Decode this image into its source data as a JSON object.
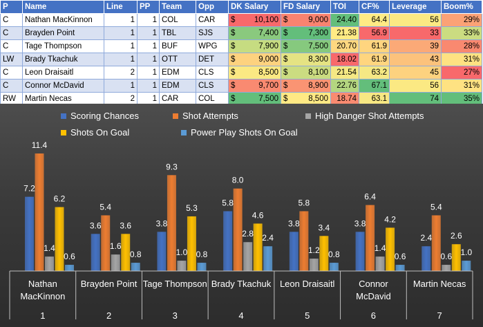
{
  "table": {
    "headers": [
      "P",
      "Name",
      "Line",
      "PP",
      "Team",
      "Opp",
      "DK Salary",
      "FD Salary",
      "TOI",
      "CF%",
      "Leverage",
      "Boom%"
    ],
    "rows": [
      {
        "pos": "C",
        "name": "Nathan MacKinnon",
        "line": "1",
        "pp": "1",
        "team": "COL",
        "opp": "CAR",
        "dk": "10,100",
        "fd": "9,000",
        "toi": "24.40",
        "cf": "64.4",
        "lev": "56",
        "boom": "29%",
        "colors": {
          "dk": "#f8696b",
          "fd": "#f98370",
          "toi": "#63be7b",
          "cf": "#ffeb84",
          "lev": "#fbe983",
          "boom": "#fba276"
        }
      },
      {
        "pos": "C",
        "name": "Brayden Point",
        "line": "1",
        "pp": "1",
        "team": "TBL",
        "opp": "SJS",
        "dk": "7,400",
        "fd": "7,300",
        "toi": "21.38",
        "cf": "56.9",
        "lev": "33",
        "boom": "33%",
        "colors": {
          "dk": "#8ac97e",
          "fd": "#63be7b",
          "toi": "#ffeb84",
          "cf": "#f8696b",
          "lev": "#f8696b",
          "boom": "#cbdc81"
        }
      },
      {
        "pos": "C",
        "name": "Tage Thompson",
        "line": "1",
        "pp": "1",
        "team": "BUF",
        "opp": "WPG",
        "dk": "7,900",
        "fd": "7,500",
        "toi": "20.70",
        "cf": "61.9",
        "lev": "39",
        "boom": "28%",
        "colors": {
          "dk": "#c6dc81",
          "fd": "#86c97e",
          "toi": "#fed880",
          "cf": "#ffd57f",
          "lev": "#fba977",
          "boom": "#f98970"
        }
      },
      {
        "pos": "LW",
        "name": "Brady Tkachuk",
        "line": "1",
        "pp": "1",
        "team": "OTT",
        "opp": "DET",
        "dk": "9,000",
        "fd": "8,300",
        "toi": "18.02",
        "cf": "61.9",
        "lev": "43",
        "boom": "31%",
        "colors": {
          "dk": "#fdd27f",
          "fd": "#e5e383",
          "toi": "#f8696b",
          "cf": "#ffd57f",
          "lev": "#fcc27c",
          "boom": "#fee282"
        }
      },
      {
        "pos": "C",
        "name": "Leon Draisaitl",
        "line": "2",
        "pp": "1",
        "team": "EDM",
        "opp": "CLS",
        "dk": "8,500",
        "fd": "8,100",
        "toi": "21.54",
        "cf": "63.2",
        "lev": "45",
        "boom": "27%",
        "colors": {
          "dk": "#fbe983",
          "fd": "#cbdc81",
          "toi": "#f5e884",
          "cf": "#f5e884",
          "lev": "#fdd27f",
          "boom": "#f8696b"
        }
      },
      {
        "pos": "C",
        "name": "Connor McDavid",
        "line": "1",
        "pp": "1",
        "team": "EDM",
        "opp": "CLS",
        "dk": "9,700",
        "fd": "8,900",
        "toi": "22.76",
        "cf": "67.1",
        "lev": "56",
        "boom": "31%",
        "colors": {
          "dk": "#f98a71",
          "fd": "#fa9473",
          "toi": "#b4d680",
          "cf": "#63be7b",
          "lev": "#fbe983",
          "boom": "#fee282"
        }
      },
      {
        "pos": "RW",
        "name": "Martin Necas",
        "line": "2",
        "pp": "1",
        "team": "CAR",
        "opp": "COL",
        "dk": "7,500",
        "fd": "8,500",
        "toi": "18.74",
        "cf": "63.1",
        "lev": "74",
        "boom": "35%",
        "colors": {
          "dk": "#63be7b",
          "fd": "#ffe984",
          "toi": "#f98b71",
          "cf": "#f7e783",
          "lev": "#63be7b",
          "boom": "#63be7b"
        }
      }
    ]
  },
  "chart_data": {
    "type": "bar",
    "categories": [
      "Nathan MacKinnon",
      "Brayden Point",
      "Tage Thompson",
      "Brady Tkachuk",
      "Leon Draisaitl",
      "Connor McDavid",
      "Martin Necas"
    ],
    "category_lines": [
      [
        "Nathan",
        "MacKinnon"
      ],
      [
        "Brayden Point"
      ],
      [
        "Tage Thompson"
      ],
      [
        "Brady Tkachuk"
      ],
      [
        "Leon Draisaitl"
      ],
      [
        "Connor",
        "McDavid"
      ],
      [
        "Martin Necas"
      ]
    ],
    "group_numbers": [
      "1",
      "2",
      "3",
      "4",
      "5",
      "6",
      "7"
    ],
    "series": [
      {
        "name": "Scoring Chances",
        "color": "#4472c4",
        "values": [
          7.2,
          3.6,
          3.8,
          5.8,
          3.8,
          3.8,
          2.4
        ]
      },
      {
        "name": "Shot Attempts",
        "color": "#ed7d31",
        "values": [
          11.4,
          5.4,
          9.3,
          8.0,
          5.8,
          6.4,
          5.4
        ]
      },
      {
        "name": "High Danger Shot Attempts",
        "color": "#a5a5a5",
        "values": [
          1.4,
          1.6,
          1.0,
          2.8,
          1.2,
          1.4,
          0.6
        ]
      },
      {
        "name": "Shots On Goal",
        "color": "#ffc000",
        "values": [
          6.2,
          3.6,
          5.3,
          4.6,
          3.4,
          4.2,
          2.6
        ]
      },
      {
        "name": "Power Play Shots On Goal",
        "color": "#5b9bd5",
        "values": [
          0.6,
          0.8,
          0.8,
          2.4,
          0.8,
          0.6,
          1.0
        ]
      }
    ],
    "title": "",
    "xlabel": "",
    "ylabel": "",
    "ylim": [
      0,
      12
    ],
    "legend": "top",
    "grid": false
  }
}
